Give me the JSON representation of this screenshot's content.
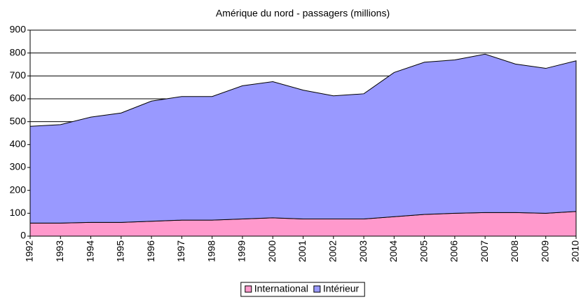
{
  "chart_data": {
    "type": "stacked_area",
    "title": "Amérique du nord - passagers (millions)",
    "x": [
      1992,
      1993,
      1994,
      1995,
      1996,
      1997,
      1998,
      1999,
      2000,
      2001,
      2002,
      2003,
      2004,
      2005,
      2006,
      2007,
      2008,
      2009,
      2010
    ],
    "xlim": [
      1992,
      2010
    ],
    "xticks": [
      1992,
      1993,
      1994,
      1995,
      1996,
      1997,
      1998,
      1999,
      2000,
      2001,
      2002,
      2003,
      2004,
      2005,
      2006,
      2007,
      2008,
      2009,
      2010
    ],
    "ylim": [
      0,
      900
    ],
    "yticks": [
      0,
      100,
      200,
      300,
      400,
      500,
      600,
      700,
      800,
      900
    ],
    "grid": true,
    "legend": "bottom",
    "series": [
      {
        "name": "International",
        "color": "#ff99cc",
        "values": [
          57,
          57,
          60,
          60,
          65,
          70,
          70,
          75,
          80,
          75,
          75,
          75,
          85,
          95,
          100,
          103,
          103,
          100,
          108
        ]
      },
      {
        "name": "Intérieur",
        "color": "#9999ff",
        "values": [
          423,
          430,
          460,
          478,
          525,
          540,
          540,
          582,
          595,
          563,
          538,
          547,
          630,
          665,
          670,
          692,
          649,
          633,
          658
        ]
      }
    ]
  }
}
